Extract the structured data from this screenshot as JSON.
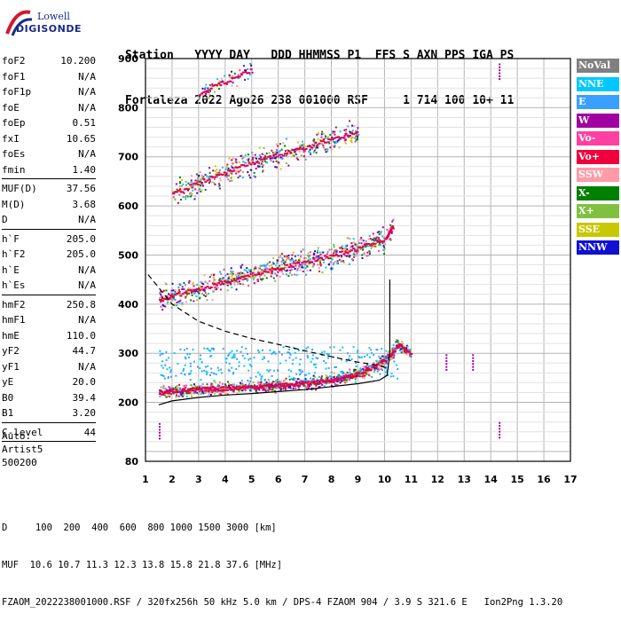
{
  "logo": {
    "brand_top": "Lowell",
    "brand_bottom": "DIGISONDE"
  },
  "header": {
    "line1": "Station   YYYY DAY   DDD HHMMSS P1  FFS S AXN PPS IGA PS",
    "line2": "Fortaleza 2022 Ago26 238 001000 RSF     1 714 100 10+ 11"
  },
  "params": {
    "group1": [
      {
        "k": "foF2",
        "v": "10.200"
      },
      {
        "k": "foF1",
        "v": "N/A"
      },
      {
        "k": "foF1p",
        "v": "N/A"
      },
      {
        "k": "foE",
        "v": "N/A"
      },
      {
        "k": "foEp",
        "v": "0.51"
      },
      {
        "k": "fxI",
        "v": "10.65"
      },
      {
        "k": "foEs",
        "v": "N/A"
      },
      {
        "k": "fmin",
        "v": "1.40"
      }
    ],
    "group2": [
      {
        "k": "MUF(D)",
        "v": "37.56"
      },
      {
        "k": "M(D)",
        "v": "3.68"
      },
      {
        "k": "D",
        "v": "N/A"
      }
    ],
    "group3": [
      {
        "k": "h`F",
        "v": "205.0"
      },
      {
        "k": "h`F2",
        "v": "205.0"
      },
      {
        "k": "h`E",
        "v": "N/A"
      },
      {
        "k": "h`Es",
        "v": "N/A"
      }
    ],
    "group4": [
      {
        "k": "hmF2",
        "v": "250.8"
      },
      {
        "k": "hmF1",
        "v": "N/A"
      },
      {
        "k": "hmE",
        "v": "110.0"
      },
      {
        "k": "yF2",
        "v": "44.7"
      },
      {
        "k": "yF1",
        "v": "N/A"
      },
      {
        "k": "yE",
        "v": "20.0"
      },
      {
        "k": "B0",
        "v": "39.4"
      },
      {
        "k": "B1",
        "v": "3.20"
      }
    ],
    "group5": [
      {
        "k": "C-level",
        "v": "44"
      }
    ]
  },
  "auto": {
    "line1": "Auto:",
    "line2": "Artist5",
    "line3": "500200"
  },
  "legend": [
    {
      "label": "NoVal",
      "color": "#808080"
    },
    {
      "label": "NNE",
      "color": "#00c8ff"
    },
    {
      "label": "E",
      "color": "#3aa0ff"
    },
    {
      "label": "W",
      "color": "#a000a0"
    },
    {
      "label": "Vo-",
      "color": "#ff40a0"
    },
    {
      "label": "Vo+",
      "color": "#f0003c"
    },
    {
      "label": "SSW",
      "color": "#ff9aa8"
    },
    {
      "label": "X-",
      "color": "#008000"
    },
    {
      "label": "X+",
      "color": "#80c040"
    },
    {
      "label": "SSE",
      "color": "#c8c800"
    },
    {
      "label": "NNW",
      "color": "#1010d0"
    }
  ],
  "bottom": {
    "line1": "D     100  200  400  600  800 1000 1500 3000 [km]",
    "line2": "MUF  10.6 10.7 11.3 12.3 13.8 15.8 21.8 37.6 [MHz]",
    "line3": "FZAOM_2022238001000.RSF / 320fx256h 50 kHz 5.0 km / DPS-4 FZAOM 904 / 3.9 S 321.6 E   Ion2Png 1.3.20"
  },
  "chart_data": {
    "type": "scatter",
    "title": "",
    "xlabel": "",
    "ylabel": "",
    "xlim": [
      1,
      17
    ],
    "ylim": [
      80,
      900
    ],
    "xticks": [
      1,
      2,
      3,
      4,
      5,
      6,
      7,
      8,
      9,
      10,
      11,
      12,
      13,
      14,
      15,
      16,
      17
    ],
    "yticks": [
      80,
      200,
      300,
      400,
      500,
      600,
      700,
      800,
      900
    ],
    "grid": true,
    "traces": [
      {
        "name": "o-trace",
        "color": "#e0004a",
        "points": [
          [
            1.5,
            220
          ],
          [
            2,
            225
          ],
          [
            2.5,
            226
          ],
          [
            3,
            228
          ],
          [
            3.5,
            229
          ],
          [
            4,
            230
          ],
          [
            4.5,
            232
          ],
          [
            5,
            233
          ],
          [
            5.5,
            235
          ],
          [
            6,
            236
          ],
          [
            6.5,
            238
          ],
          [
            7,
            240
          ],
          [
            7.5,
            243
          ],
          [
            8,
            247
          ],
          [
            8.5,
            252
          ],
          [
            9,
            260
          ],
          [
            9.5,
            272
          ],
          [
            10,
            288
          ],
          [
            10.2,
            300
          ],
          [
            10.5,
            320
          ],
          [
            11,
            300
          ]
        ]
      },
      {
        "name": "f-trace",
        "color": "#e0004a",
        "points": [
          [
            1.5,
            410
          ],
          [
            2,
            418
          ],
          [
            3,
            432
          ],
          [
            4,
            448
          ],
          [
            5,
            462
          ],
          [
            6,
            475
          ],
          [
            7,
            488
          ],
          [
            8,
            500
          ],
          [
            9,
            515
          ],
          [
            10,
            535
          ],
          [
            10.3,
            560
          ]
        ]
      },
      {
        "name": "3f-trace",
        "color": "#e0004a",
        "points": [
          [
            2,
            625
          ],
          [
            3,
            650
          ],
          [
            4,
            670
          ],
          [
            5,
            690
          ],
          [
            6,
            705
          ],
          [
            7,
            720
          ],
          [
            8,
            738
          ],
          [
            9,
            752
          ]
        ]
      },
      {
        "name": "4f-trace",
        "color": "#e0004a",
        "points": [
          [
            3,
            830
          ],
          [
            4,
            855
          ],
          [
            5,
            880
          ]
        ]
      }
    ],
    "profile_solid": [
      [
        1.5,
        195
      ],
      [
        2,
        203
      ],
      [
        3,
        210
      ],
      [
        4,
        215
      ],
      [
        5,
        218
      ],
      [
        6,
        222
      ],
      [
        7,
        226
      ],
      [
        8,
        232
      ],
      [
        9,
        238
      ],
      [
        9.8,
        245
      ],
      [
        10.1,
        255
      ],
      [
        10.2,
        300
      ],
      [
        10.2,
        450
      ]
    ],
    "profile_dashed": [
      [
        1.1,
        460
      ],
      [
        2,
        400
      ],
      [
        3,
        365
      ],
      [
        4,
        345
      ],
      [
        5,
        330
      ],
      [
        6,
        318
      ],
      [
        7,
        305
      ],
      [
        8,
        293
      ],
      [
        9,
        282
      ],
      [
        9.6,
        277
      ],
      [
        10.1,
        270
      ]
    ],
    "spur_points": [
      [
        12.3,
        268
      ],
      [
        13.3,
        268
      ],
      [
        14.3,
        860
      ],
      [
        14.3,
        130
      ],
      [
        1.5,
        128
      ]
    ]
  }
}
